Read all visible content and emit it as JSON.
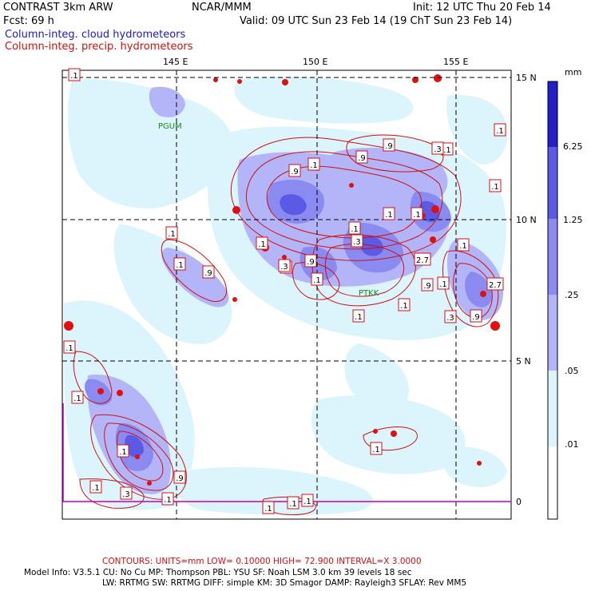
{
  "header": {
    "model": "CONTRAST  3km ARW",
    "org": "NCAR/MMM",
    "init": "Init: 12 UTC Thu 20 Feb 14",
    "fcst": "Fcst:    69 h",
    "valid": "Valid: 09 UTC Sun 23 Feb 14 (19 ChT Sun 23 Feb 14)",
    "legend_blue": "Column-integ. cloud hydrometeors",
    "legend_red": "Column-integ. precip. hydrometeors"
  },
  "map": {
    "lon_labels": [
      "145 E",
      "150 E",
      "155 E"
    ],
    "lat_labels": [
      "15 N",
      "10 N",
      "5 N",
      "0"
    ],
    "stations": [
      "PGUM",
      "PTKK"
    ],
    "contour_labels": [
      ".1",
      ".1",
      ".1",
      ".1",
      ".1",
      ".1",
      ".1",
      ".1",
      ".1",
      ".1",
      ".1",
      ".1",
      ".1",
      ".1",
      ".1",
      ".1",
      ".1",
      ".1",
      ".1",
      ".1",
      ".1",
      ".1",
      ".1",
      ".1",
      ".1",
      ".1",
      ".9",
      ".9",
      ".9",
      ".9",
      ".9",
      ".9",
      ".9",
      ".9",
      ".3",
      ".3",
      ".3",
      ".3",
      ".3",
      "2.7",
      "2.7"
    ]
  },
  "colorbar": {
    "unit": "mm",
    "labels": [
      "6.25",
      "1.25",
      ".25",
      ".05",
      ".01"
    ],
    "colors": [
      "#2020c8",
      "#5a5ae6",
      "#8a8af0",
      "#b4b4f8",
      "#dcf4fc",
      "#ffffff"
    ]
  },
  "footer": {
    "contours": "CONTOURS:  UNITS=mm  LOW= 0.10000      HIGH=  72.900      INTERVAL=X  3.0000",
    "model_info_1": "Model Info: V3.5.1     CU: No Cu     MP: Thompson     PBL: YSU       SF: Noah LSM     3.0 km   39 levels    18 sec",
    "model_info_2": "LW: RRTMG    SW: RRTMG   DIFF: simple KM: 3D Smagor DAMP: Rayleigh3   SFLAY: Rev MM5"
  },
  "colors": {
    "cloud_light": "#dcf4fc",
    "cloud_mid": "#8a8af0",
    "precip": "#d01010",
    "magenta": "#c000c0"
  }
}
